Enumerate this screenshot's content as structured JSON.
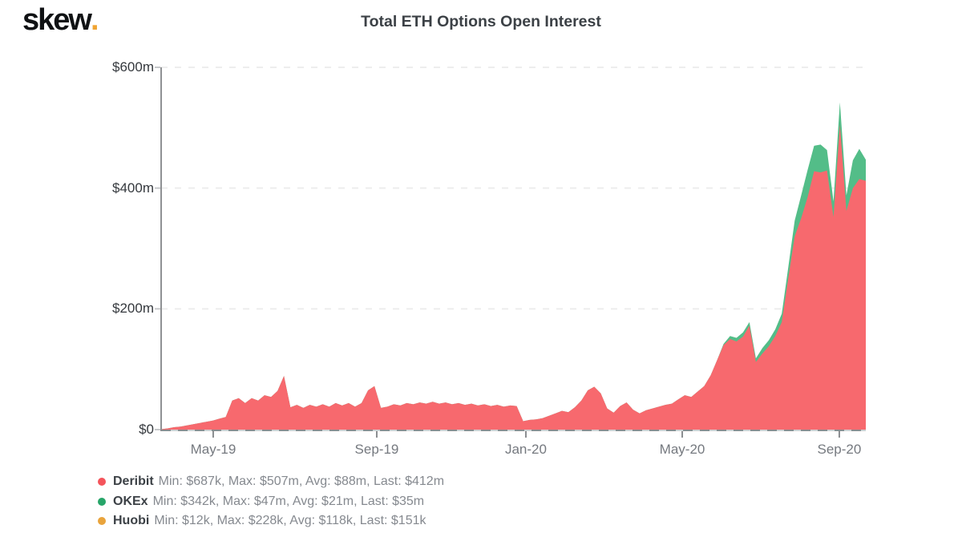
{
  "brand": {
    "logo_text": "skew",
    "logo_dot": ".",
    "logo_dot_color": "#f0a432"
  },
  "header": {
    "title": "Total ETH Options Open Interest"
  },
  "colors": {
    "deribit_area": "#f7696e",
    "okex_area": "#53bd88",
    "huobi_area": "#e9a43c",
    "axis_solid": "#cfd0d2",
    "axis_dash": "#8a8d90",
    "left_axis": "#8f9194",
    "grid": "#ededed",
    "y_tick": "#c6c8ca",
    "x_tick": "#8a8d90"
  },
  "legend": {
    "items": [
      {
        "name": "Deribit",
        "stats": "Min: $687k, Max: $507m, Avg: $88m, Last: $412m",
        "dot_color": "#f4545b"
      },
      {
        "name": "OKEx",
        "stats": "Min: $342k, Max: $47m, Avg: $21m, Last: $35m",
        "dot_color": "#27a569"
      },
      {
        "name": "Huobi",
        "stats": "Min: $12k, Max: $228k, Avg: $118k, Last: $151k",
        "dot_color": "#e9a43c"
      }
    ]
  },
  "chart_data": {
    "type": "area",
    "stacked": true,
    "title": "Total ETH Options Open Interest",
    "x_range": [
      "Mar-2019",
      "Sep-2020"
    ],
    "y_unit": "USD (millions)",
    "ylim": [
      0,
      600
    ],
    "grid": "horizontal dashed lines at $200m, $400m, $600m",
    "legend_position": "bottom-left",
    "y_ticks": [
      {
        "label": "$600m",
        "value": 600
      },
      {
        "label": "$400m",
        "value": 400
      },
      {
        "label": "$200m",
        "value": 200
      },
      {
        "label": "$0",
        "value": 0
      }
    ],
    "x_ticks": [
      {
        "label": "May-19",
        "pos": 0.0739
      },
      {
        "label": "Sep-19",
        "pos": 0.306
      },
      {
        "label": "Jan-20",
        "pos": 0.5176
      },
      {
        "label": "May-20",
        "pos": 0.7395
      },
      {
        "label": "Sep-20",
        "pos": 0.9624
      }
    ],
    "series": [
      {
        "name": "Deribit",
        "color": "#f7696e",
        "values": [
          0.7,
          2,
          4,
          5,
          7,
          9,
          11,
          13,
          15,
          18,
          21,
          48,
          52,
          44,
          52,
          48,
          57,
          54,
          64,
          89,
          37,
          41,
          36,
          41,
          38,
          42,
          38,
          44,
          40,
          44,
          38,
          44,
          65,
          72,
          36,
          38,
          42,
          40,
          44,
          42,
          45,
          43,
          46,
          43,
          45,
          42,
          44,
          41,
          43,
          40,
          42,
          39,
          41,
          38,
          40,
          39,
          14,
          16,
          17,
          19,
          23,
          27,
          31,
          29,
          37,
          48,
          65,
          71,
          60,
          35,
          28,
          39,
          45,
          33,
          27,
          32,
          35,
          38,
          41,
          43,
          50,
          57,
          54,
          63,
          72,
          90,
          115,
          140,
          150,
          146,
          154,
          172,
          112,
          126,
          138,
          155,
          178,
          250,
          320,
          350,
          385,
          428,
          426,
          429,
          352,
          505,
          362,
          400,
          415,
          412
        ]
      },
      {
        "name": "OKEx",
        "color": "#53bd88",
        "values": [
          0,
          0,
          0,
          0,
          0,
          0,
          0,
          0,
          0,
          0,
          0,
          0,
          0,
          0,
          0,
          0,
          0,
          0,
          0,
          0,
          0,
          0,
          0,
          0,
          0,
          0,
          0,
          0,
          0,
          0,
          0,
          0,
          0,
          0,
          0,
          0,
          0,
          0,
          0,
          0,
          0,
          0,
          0,
          0,
          0,
          0,
          0,
          0,
          0,
          0,
          0,
          0,
          0,
          0,
          0,
          0,
          0,
          0,
          0,
          0,
          0,
          0,
          0,
          0,
          0,
          0,
          0,
          0,
          0,
          0,
          0,
          0,
          0,
          0,
          0,
          0,
          0,
          0,
          0,
          0,
          0,
          0,
          0,
          0,
          0,
          0,
          0,
          2,
          5,
          6,
          7,
          6,
          6,
          9,
          10,
          11,
          14,
          18,
          26,
          38,
          45,
          42,
          46,
          34,
          26,
          37,
          26,
          46,
          50,
          35
        ]
      },
      {
        "name": "Huobi",
        "color": "#e9a43c",
        "values": [],
        "values_note": "Huobi max is $228k (≈$0.0002m per point) — below one pixel at this scale, not visibly rendered in the plot"
      }
    ]
  }
}
